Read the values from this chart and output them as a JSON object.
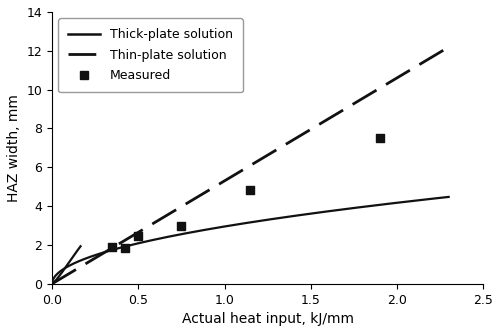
{
  "title": "",
  "xlabel": "Actual heat input, kJ/mm",
  "ylabel": "HAZ width, mm",
  "xlim": [
    0,
    2.5
  ],
  "ylim": [
    0,
    14
  ],
  "xticks": [
    0,
    0.5,
    1.0,
    1.5,
    2.0,
    2.5
  ],
  "yticks": [
    0,
    2,
    4,
    6,
    8,
    10,
    12,
    14
  ],
  "measured_x": [
    0.35,
    0.42,
    0.5,
    0.75,
    1.15,
    1.9
  ],
  "measured_y": [
    1.9,
    1.85,
    2.45,
    3.0,
    4.85,
    7.5
  ],
  "thick_scale": 2.95,
  "thin_slope": 5.3,
  "line_color": "#111111",
  "marker_color": "#111111",
  "legend_labels": [
    "Thick-plate solution",
    "Thin-plate solution",
    "Measured"
  ],
  "label_fontsize": 10,
  "tick_fontsize": 9,
  "legend_fontsize": 9,
  "background_color": "#ffffff"
}
